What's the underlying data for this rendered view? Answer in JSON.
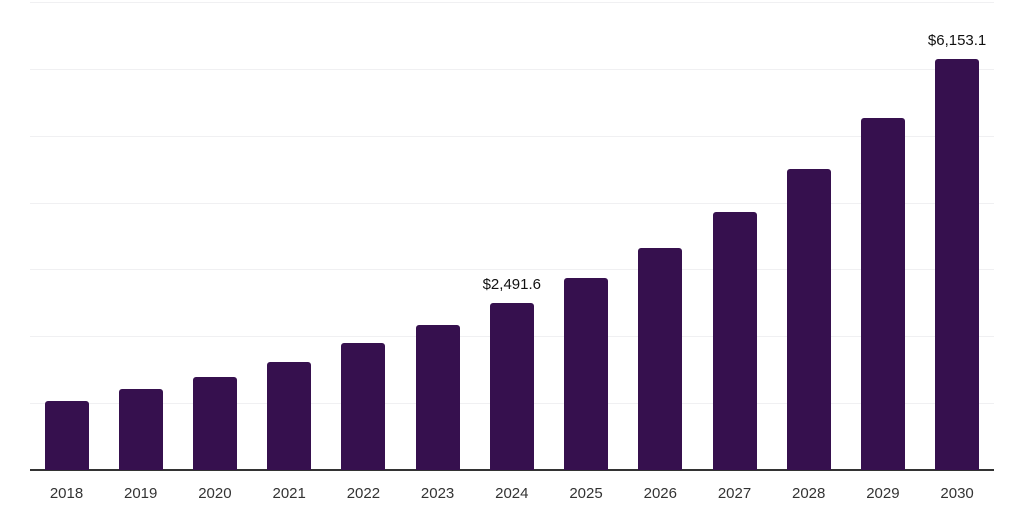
{
  "chart_data": {
    "type": "bar",
    "title": "",
    "xlabel": "",
    "ylabel": "",
    "categories": [
      "2018",
      "2019",
      "2020",
      "2021",
      "2022",
      "2023",
      "2024",
      "2025",
      "2026",
      "2027",
      "2028",
      "2029",
      "2030"
    ],
    "values": [
      1040,
      1210,
      1395,
      1620,
      1895,
      2170,
      2491.6,
      2875,
      3325,
      3855,
      4500,
      5260,
      6153.1
    ],
    "value_labels": [
      {
        "category": "2024",
        "text": "$2,491.6"
      },
      {
        "category": "2030",
        "text": "$6,153.1"
      }
    ],
    "ylim": [
      0,
      7000
    ],
    "gridline_interval": 1000,
    "grid": "horizontal",
    "y_axis_tick_labels": "none",
    "legend_position": "none",
    "colors": {
      "bar": "#36104E",
      "gridline": "#F0F0F2",
      "axis_line": "#333333",
      "tick_label": "#333333",
      "value_label": "#111111",
      "background": "#FFFFFF"
    }
  }
}
